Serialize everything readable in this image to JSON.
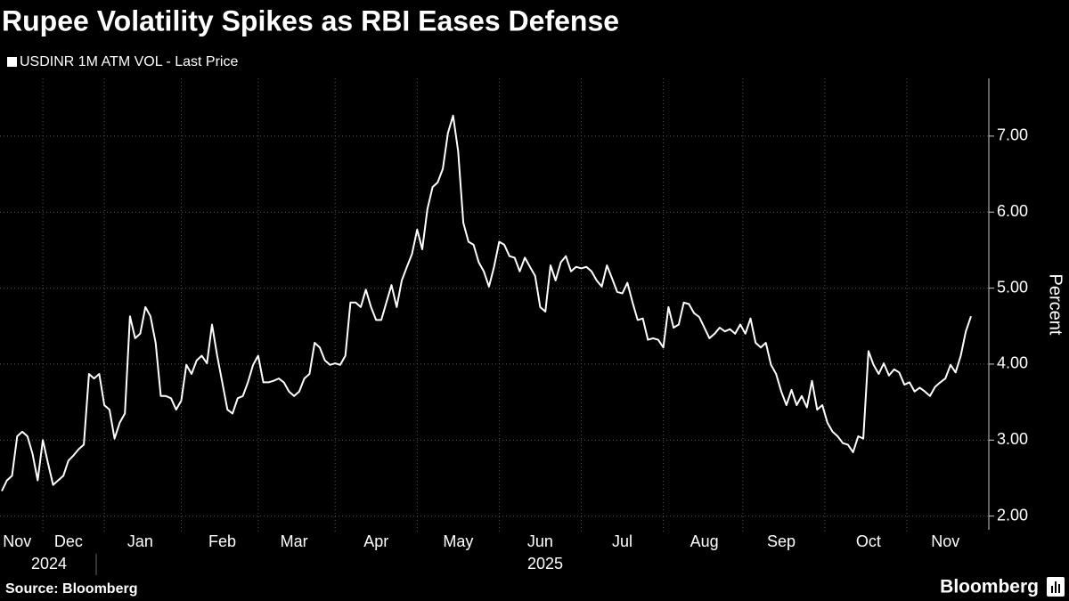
{
  "chart_data": {
    "type": "line",
    "title": "Rupee Volatility Spikes as RBI Eases Defense",
    "y_axis_label": "Percent",
    "source": "Source: Bloomberg",
    "brand": "Bloomberg",
    "years": [
      "2024",
      "2025"
    ],
    "categories": [
      null,
      null,
      null,
      "Nov",
      null,
      null,
      null,
      null,
      null,
      null,
      null,
      null,
      null,
      "Dec",
      null,
      null,
      null,
      null,
      null,
      null,
      null,
      null,
      null,
      null,
      null,
      null,
      null,
      "Jan",
      null,
      null,
      null,
      null,
      null,
      null,
      null,
      null,
      null,
      null,
      null,
      null,
      null,
      null,
      null,
      "Feb",
      null,
      null,
      null,
      null,
      null,
      null,
      null,
      null,
      null,
      null,
      null,
      null,
      null,
      "Mar",
      null,
      null,
      null,
      null,
      null,
      null,
      null,
      null,
      null,
      null,
      null,
      null,
      null,
      null,
      null,
      "Apr",
      null,
      null,
      null,
      null,
      null,
      null,
      null,
      null,
      null,
      null,
      null,
      null,
      null,
      null,
      null,
      "May",
      null,
      null,
      null,
      null,
      null,
      null,
      null,
      null,
      null,
      null,
      null,
      null,
      null,
      null,
      null,
      "Jun",
      null,
      null,
      null,
      null,
      null,
      null,
      null,
      null,
      null,
      null,
      null,
      null,
      null,
      null,
      null,
      "Jul",
      null,
      null,
      null,
      null,
      null,
      null,
      null,
      null,
      null,
      null,
      null,
      null,
      null,
      null,
      null,
      "Aug",
      null,
      null,
      null,
      null,
      null,
      null,
      null,
      null,
      null,
      null,
      null,
      null,
      null,
      null,
      "Sep",
      null,
      null,
      null,
      null,
      null,
      null,
      null,
      null,
      null,
      null,
      null,
      null,
      null,
      null,
      null,
      null,
      "Oct",
      null,
      null,
      null,
      null,
      null,
      null,
      null,
      null,
      null,
      null,
      null,
      null,
      null,
      null,
      "Nov",
      null,
      null,
      null,
      null,
      null
    ],
    "series": [
      {
        "name": "USDINR 1M ATM VOL - Last Price",
        "color": "#ffffff",
        "values": [
          2.33,
          2.47,
          2.53,
          3.05,
          3.11,
          3.05,
          2.82,
          2.47,
          3.0,
          2.7,
          2.41,
          2.47,
          2.53,
          2.73,
          2.8,
          2.88,
          2.94,
          3.87,
          3.81,
          3.87,
          3.46,
          3.4,
          3.02,
          3.23,
          3.35,
          4.63,
          4.34,
          4.4,
          4.75,
          4.63,
          4.28,
          3.58,
          3.58,
          3.55,
          3.4,
          3.52,
          3.99,
          3.87,
          4.05,
          4.11,
          4.01,
          4.52,
          4.11,
          3.76,
          3.4,
          3.35,
          3.55,
          3.58,
          3.76,
          3.99,
          4.11,
          3.76,
          3.76,
          3.78,
          3.81,
          3.76,
          3.64,
          3.58,
          3.64,
          3.81,
          3.87,
          4.28,
          4.22,
          4.05,
          3.99,
          4.01,
          3.99,
          4.11,
          4.81,
          4.81,
          4.75,
          4.98,
          4.75,
          4.58,
          4.58,
          4.81,
          5.04,
          4.75,
          5.1,
          5.28,
          5.45,
          5.77,
          5.51,
          6.04,
          6.33,
          6.39,
          6.57,
          7.04,
          7.27,
          6.8,
          5.86,
          5.61,
          5.57,
          5.34,
          5.22,
          5.02,
          5.28,
          5.61,
          5.57,
          5.42,
          5.4,
          5.22,
          5.4,
          5.28,
          5.16,
          4.75,
          4.69,
          5.3,
          5.1,
          5.34,
          5.42,
          5.22,
          5.28,
          5.26,
          5.28,
          5.22,
          5.1,
          5.02,
          5.3,
          5.13,
          4.95,
          4.93,
          5.07,
          4.81,
          4.58,
          4.6,
          4.32,
          4.34,
          4.32,
          4.22,
          4.75,
          4.48,
          4.52,
          4.81,
          4.79,
          4.67,
          4.62,
          4.48,
          4.34,
          4.4,
          4.48,
          4.43,
          4.46,
          4.4,
          4.52,
          4.4,
          4.6,
          4.28,
          4.22,
          4.28,
          3.99,
          3.87,
          3.64,
          3.46,
          3.66,
          3.46,
          3.58,
          3.43,
          3.78,
          3.4,
          3.46,
          3.23,
          3.11,
          3.05,
          2.96,
          2.94,
          2.84,
          3.05,
          3.02,
          4.17,
          3.99,
          3.87,
          4.01,
          3.85,
          3.93,
          3.89,
          3.73,
          3.76,
          3.64,
          3.69,
          3.64,
          3.58,
          3.7,
          3.76,
          3.81,
          3.99,
          3.89,
          4.11,
          4.43,
          4.63
        ]
      }
    ],
    "ylim": [
      1.82,
      7.76
    ],
    "yticks": [
      {
        "value": 2,
        "label": "2.00"
      },
      {
        "value": 3,
        "label": "3.00"
      },
      {
        "value": 4,
        "label": "4.00"
      },
      {
        "value": 5,
        "label": "5.00"
      },
      {
        "value": 6,
        "label": "6.00"
      },
      {
        "value": 7,
        "label": "7.00"
      }
    ],
    "grid": true
  }
}
